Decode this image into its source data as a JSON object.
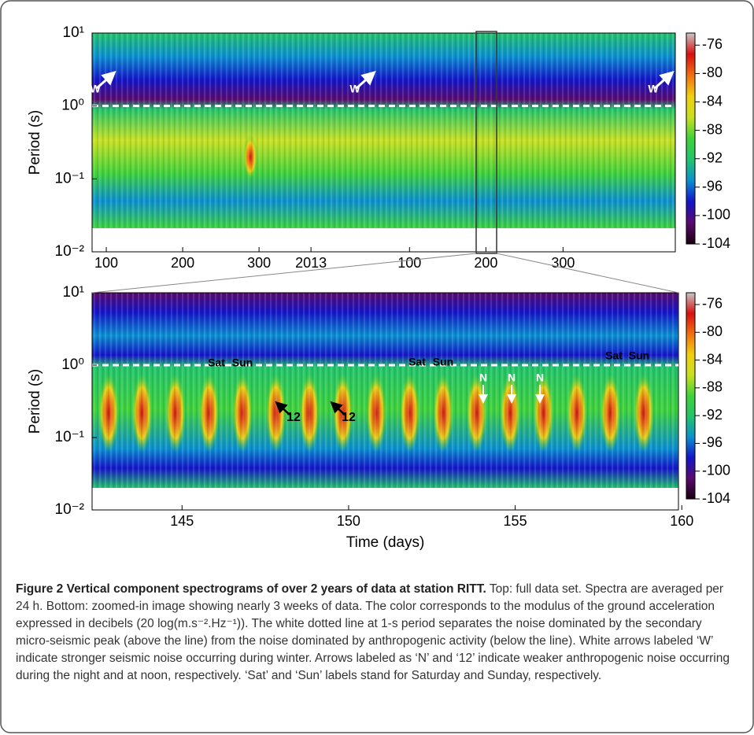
{
  "chart_data": [
    {
      "type": "heatmap",
      "ylabel": "Period (s)",
      "log_y": true,
      "ylim": [
        0.01,
        10
      ],
      "yticks": [
        {
          "value": 10,
          "label": "10¹"
        },
        {
          "value": 1,
          "label": "10⁰"
        },
        {
          "value": 0.1,
          "label": "10⁻¹"
        },
        {
          "value": 0.01,
          "label": "10⁻²"
        }
      ],
      "xlim": [
        81.4,
        845
      ],
      "xticks": [
        100,
        200,
        300,
        {
          "value": 368,
          "label": "2013"
        },
        {
          "value": 497,
          "label": "100"
        },
        {
          "value": 597,
          "label": "200"
        },
        {
          "value": 698,
          "label": "300"
        }
      ],
      "reference_line": 1,
      "colorbar": {
        "lim": [
          -104,
          -74.3
        ],
        "ticks": [
          -76,
          -80,
          -84,
          -88,
          -92,
          -96,
          -100,
          -104
        ]
      },
      "annotations": [
        "W",
        "W",
        "W"
      ]
    },
    {
      "type": "heatmap",
      "ylabel": "Period (s)",
      "xlabel": "Time (days)",
      "log_y": true,
      "ylim": [
        0.01,
        10
      ],
      "yticks": [
        {
          "value": 10,
          "label": "10¹"
        },
        {
          "value": 1,
          "label": "10⁰"
        },
        {
          "value": 0.1,
          "label": "10⁻¹"
        },
        {
          "value": 0.01,
          "label": "10⁻²"
        }
      ],
      "xlim": [
        142.3,
        159.9
      ],
      "xticks": [
        145,
        150,
        155,
        160
      ],
      "reference_line": 1,
      "colorbar": {
        "lim": [
          -104,
          -74.3
        ],
        "ticks": [
          -76,
          -80,
          -84,
          -88,
          -92,
          -96,
          -100,
          -104
        ]
      },
      "annotations": [
        "Sat",
        "Sun",
        "Sat",
        "Sun",
        "Sat",
        "Sun",
        "N",
        "N",
        "N",
        "12",
        "12"
      ]
    }
  ],
  "colormap": [
    "#1a0010",
    "#5a0a6e",
    "#1414c8",
    "#0a90d0",
    "#22c46a",
    "#3ed23a",
    "#c8e020",
    "#f0d010",
    "#f07010",
    "#d81010",
    "#c8c8c8"
  ],
  "caption": {
    "label": "Figure 2",
    "title": "Vertical component spectrograms of over 2 years of data at station RITT.",
    "text": "Top: full data set. Spectra are averaged per 24 h. Bottom: zoomed-in image showing nearly 3 weeks of data. The color corresponds to the modulus of the ground acceleration expressed in decibels (20 log(m.s⁻².Hz⁻¹)). The white dotted line at 1-s period separates the noise dominated by the secondary micro-seismic peak (above the line) from the noise dominated by anthropogenic activity (below the line). White arrows labeled ‘W’ indicate stronger seismic noise occurring during winter. Arrows labeled as ‘N’ and ‘12’ indicate weaker anthropogenic noise occurring during the night and at noon, respectively. ‘Sat’ and ‘Sun’ labels stand for Saturday and Sunday, respectively."
  }
}
